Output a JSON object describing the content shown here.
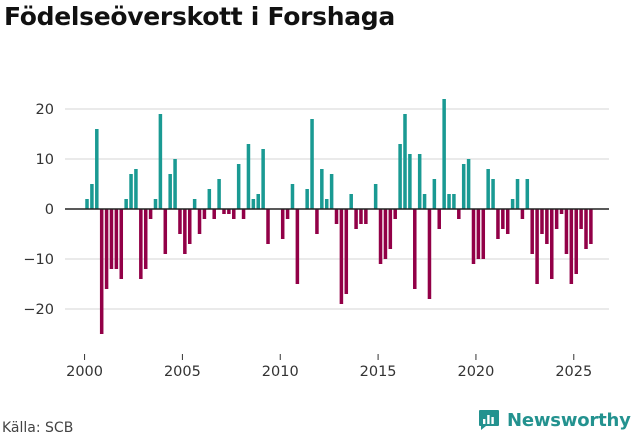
{
  "title": "Födelseöverskott i Forshaga",
  "source": "Källa: SCB",
  "brand": {
    "name": "Newsworthy",
    "icon": "chart-logo-icon"
  },
  "colors": {
    "positive": "#1a9a93",
    "negative": "#920047",
    "grid": "#d6d6d6",
    "zero": "#222222",
    "brand": "#23928f"
  },
  "chart_data": {
    "type": "bar",
    "title": "Födelseöverskott i Forshaga",
    "xlabel": "",
    "ylabel": "",
    "ylim": [
      -29,
      23
    ],
    "xlim": [
      1999.0,
      2026.8
    ],
    "y_ticks": [
      20,
      10,
      0,
      -10,
      -20
    ],
    "y_tick_labels": [
      "20",
      "10",
      "0",
      "−10",
      "−20"
    ],
    "x_ticks": [
      2000,
      2005,
      2010,
      2015,
      2020,
      2025
    ],
    "x_tick_labels": [
      "2000",
      "2005",
      "2010",
      "2015",
      "2020",
      "2025"
    ],
    "frequency": "quarterly",
    "start": 2000.0,
    "step": 0.25,
    "values": [
      2,
      5,
      16,
      -25,
      -16,
      -12,
      -12,
      -14,
      2,
      7,
      8,
      -14,
      -12,
      -2,
      2,
      19,
      -9,
      7,
      10,
      -5,
      -9,
      -7,
      2,
      -5,
      -2,
      4,
      -2,
      6,
      -1,
      -1,
      -2,
      9,
      -2,
      13,
      2,
      3,
      12,
      -7,
      0,
      0,
      -6,
      -2,
      5,
      -15,
      0,
      4,
      18,
      -5,
      8,
      2,
      7,
      -3,
      -19,
      -17,
      3,
      -4,
      -3,
      -3,
      0,
      5,
      -11,
      -10,
      -8,
      -2,
      13,
      19,
      11,
      -16,
      11,
      3,
      -18,
      6,
      -4,
      22,
      3,
      3,
      -2,
      9,
      10,
      -11,
      -10,
      -10,
      8,
      6,
      -6,
      -4,
      -5,
      2,
      6,
      -2,
      6,
      -9,
      -15,
      -5,
      -7,
      -14,
      -4,
      -1,
      -9,
      -15,
      -13,
      -4,
      -8,
      -7
    ]
  }
}
